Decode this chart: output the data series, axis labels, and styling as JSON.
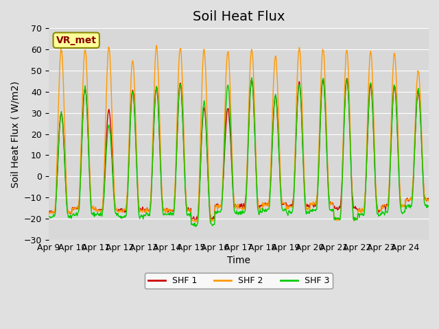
{
  "title": "Soil Heat Flux",
  "ylabel": "Soil Heat Flux ( W/m2)",
  "xlabel": "Time",
  "annotation": "VR_met",
  "ylim": [
    -30,
    70
  ],
  "yticks": [
    -30,
    -20,
    -10,
    0,
    10,
    20,
    30,
    40,
    50,
    60,
    70
  ],
  "xtick_labels": [
    "Apr 9",
    "Apr 10",
    "Apr 11",
    "Apr 12",
    "Apr 13",
    "Apr 14",
    "Apr 15",
    "Apr 16",
    "Apr 17",
    "Apr 18",
    "Apr 19",
    "Apr 20",
    "Apr 21",
    "Apr 22",
    "Apr 23",
    "Apr 24"
  ],
  "legend_labels": [
    "SHF 1",
    "SHF 2",
    "SHF 3"
  ],
  "line_colors": [
    "#cc0000",
    "#ff9900",
    "#00cc00"
  ],
  "background_color": "#e0e0e0",
  "plot_bg_color": "#d8d8d8",
  "annotation_bg": "#ffff99",
  "annotation_border": "#888800",
  "annotation_text_color": "#880000",
  "title_fontsize": 14,
  "axis_label_fontsize": 10,
  "tick_fontsize": 9,
  "num_days": 16,
  "n_points_per_day": 48,
  "shf2_peaks": [
    60,
    60,
    61,
    55,
    61,
    61,
    60,
    59,
    60,
    57,
    61,
    60,
    60,
    59,
    58,
    50
  ],
  "shf1_peaks": [
    30,
    42,
    31,
    41,
    42,
    44,
    32,
    32,
    46,
    38,
    44,
    46,
    46,
    43,
    43,
    40
  ],
  "shf3_peaks": [
    30,
    42,
    24,
    40,
    42,
    44,
    35,
    43,
    46,
    38,
    44,
    46,
    46,
    44,
    43,
    41
  ],
  "shf1_nights": [
    -17,
    -15,
    -16,
    -16,
    -16,
    -16,
    -20,
    -14,
    -14,
    -13,
    -14,
    -13,
    -15,
    -16,
    -14,
    -11
  ],
  "shf2_nights": [
    -17,
    -15,
    -16,
    -16,
    -16,
    -16,
    -21,
    -14,
    -15,
    -13,
    -15,
    -13,
    -20,
    -16,
    -14,
    -11
  ],
  "shf3_nights": [
    -19,
    -18,
    -18,
    -19,
    -18,
    -18,
    -23,
    -17,
    -17,
    -16,
    -17,
    -16,
    -20,
    -18,
    -17,
    -14
  ]
}
